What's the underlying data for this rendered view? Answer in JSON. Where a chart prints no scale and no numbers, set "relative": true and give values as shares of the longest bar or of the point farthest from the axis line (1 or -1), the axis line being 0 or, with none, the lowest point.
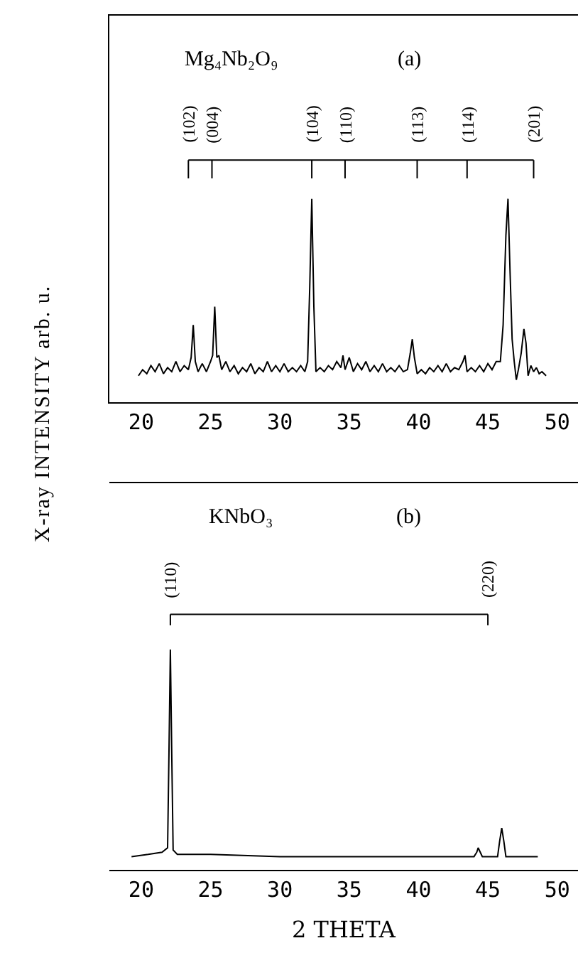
{
  "chart_data": [
    {
      "type": "line",
      "title": "Mg₄Nb₂O₉",
      "ylabel": "X-ray INTENSITY   arb. u.",
      "relative": true,
      "xlim": [
        17.7,
        51.5
      ],
      "xticks": [
        20,
        25,
        30,
        35,
        40,
        45,
        50
      ],
      "grid": false,
      "marker": "none",
      "line_style": "solid",
      "annotations": [
        "(a)",
        {
          "text": "(102)",
          "x": 23.4
        },
        {
          "text": "(004)",
          "x": 25.1
        },
        {
          "text": "(104)",
          "x": 32.3
        },
        {
          "text": "(110)",
          "x": 34.7
        },
        {
          "text": "(113)",
          "x": 39.9
        },
        {
          "text": "(114)",
          "x": 43.5
        },
        {
          "text": "(201)",
          "x": 48.3
        }
      ],
      "series": [
        {
          "color": "#000000",
          "x": [
            19.8,
            20.1,
            20.4,
            20.7,
            21.0,
            21.3,
            21.6,
            21.9,
            22.2,
            22.5,
            22.8,
            23.1,
            23.4,
            23.6,
            23.75,
            23.9,
            24.1,
            24.4,
            24.7,
            25.0,
            25.15,
            25.3,
            25.45,
            25.6,
            25.8,
            26.1,
            26.4,
            26.7,
            27.0,
            27.3,
            27.6,
            27.9,
            28.2,
            28.5,
            28.8,
            29.1,
            29.4,
            29.7,
            30.0,
            30.3,
            30.6,
            30.9,
            31.2,
            31.5,
            31.8,
            32.0,
            32.15,
            32.3,
            32.45,
            32.6,
            32.9,
            33.2,
            33.5,
            33.8,
            34.1,
            34.4,
            34.55,
            34.7,
            35.0,
            35.3,
            35.6,
            35.9,
            36.2,
            36.5,
            36.8,
            37.1,
            37.4,
            37.7,
            38.0,
            38.3,
            38.6,
            38.9,
            39.2,
            39.4,
            39.55,
            39.7,
            39.9,
            40.2,
            40.5,
            40.8,
            41.1,
            41.4,
            41.7,
            42.0,
            42.3,
            42.6,
            42.9,
            43.2,
            43.35,
            43.5,
            43.8,
            44.1,
            44.4,
            44.7,
            45.0,
            45.3,
            45.6,
            45.9,
            46.1,
            46.3,
            46.45,
            46.6,
            46.75,
            46.9,
            47.05,
            47.2,
            47.4,
            47.6,
            47.75,
            47.9,
            48.1,
            48.3,
            48.5,
            48.7,
            48.9,
            49.2
          ],
          "values": [
            0.13,
            0.16,
            0.14,
            0.18,
            0.15,
            0.19,
            0.14,
            0.17,
            0.15,
            0.2,
            0.15,
            0.18,
            0.16,
            0.22,
            0.38,
            0.2,
            0.15,
            0.19,
            0.15,
            0.2,
            0.23,
            0.47,
            0.22,
            0.23,
            0.16,
            0.2,
            0.15,
            0.18,
            0.14,
            0.17,
            0.15,
            0.19,
            0.14,
            0.17,
            0.15,
            0.2,
            0.15,
            0.18,
            0.15,
            0.19,
            0.15,
            0.17,
            0.15,
            0.18,
            0.15,
            0.2,
            0.56,
            1.0,
            0.47,
            0.15,
            0.17,
            0.15,
            0.18,
            0.16,
            0.2,
            0.17,
            0.23,
            0.16,
            0.22,
            0.15,
            0.19,
            0.16,
            0.2,
            0.15,
            0.18,
            0.15,
            0.19,
            0.15,
            0.17,
            0.15,
            0.18,
            0.15,
            0.16,
            0.24,
            0.31,
            0.22,
            0.14,
            0.16,
            0.14,
            0.17,
            0.15,
            0.18,
            0.15,
            0.19,
            0.15,
            0.17,
            0.16,
            0.2,
            0.23,
            0.15,
            0.17,
            0.15,
            0.18,
            0.15,
            0.19,
            0.16,
            0.2,
            0.2,
            0.38,
            0.82,
            1.0,
            0.64,
            0.31,
            0.2,
            0.11,
            0.16,
            0.24,
            0.36,
            0.29,
            0.13,
            0.18,
            0.15,
            0.17,
            0.14,
            0.15,
            0.13
          ]
        }
      ]
    },
    {
      "type": "line",
      "title": "KNbO₃",
      "xlabel": "2 THETA",
      "relative": true,
      "xlim": [
        17.7,
        51.5
      ],
      "xticks": [
        20,
        25,
        30,
        35,
        40,
        45,
        50
      ],
      "grid": false,
      "marker": "none",
      "line_style": "solid",
      "annotations": [
        "(b)",
        {
          "text": "(110)",
          "x": 22.1
        },
        {
          "text": "(220)",
          "x": 45.0
        }
      ],
      "series": [
        {
          "color": "#000000",
          "x": [
            19.3,
            20.5,
            21.5,
            21.9,
            22.0,
            22.1,
            22.2,
            22.3,
            22.6,
            25.0,
            30.0,
            35.0,
            40.0,
            44.0,
            44.2,
            44.3,
            44.45,
            44.6,
            45.0,
            45.7,
            45.85,
            46.0,
            46.15,
            46.3,
            48.6
          ],
          "values": [
            0.06,
            0.07,
            0.08,
            0.1,
            0.53,
            1.0,
            0.53,
            0.09,
            0.07,
            0.07,
            0.06,
            0.06,
            0.06,
            0.06,
            0.08,
            0.1,
            0.08,
            0.06,
            0.06,
            0.06,
            0.13,
            0.19,
            0.13,
            0.06,
            0.06
          ]
        }
      ]
    }
  ]
}
